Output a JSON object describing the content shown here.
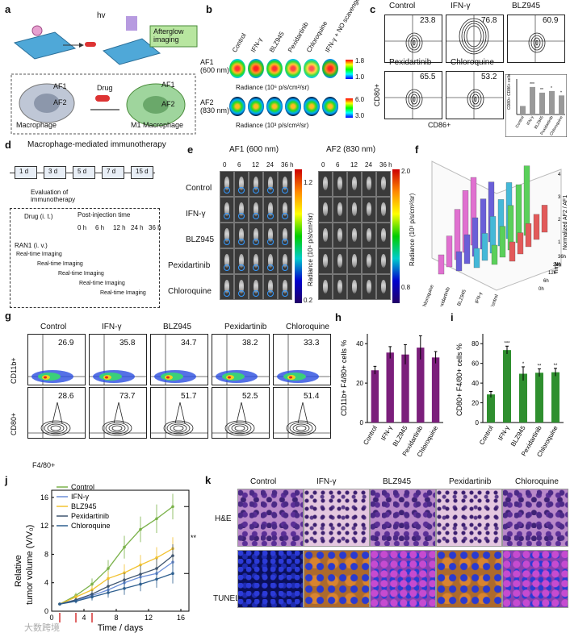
{
  "panels": {
    "a": "a",
    "b": "b",
    "c": "c",
    "d": "d",
    "e": "e",
    "f": "f",
    "g": "g",
    "h": "h",
    "i": "i",
    "j": "j",
    "k": "k"
  },
  "a": {
    "hv": "hv",
    "afterglow": "Afterglow\nimaging",
    "af1": "AF1",
    "af2": "AF2",
    "drug": "Drug",
    "macrophage": "Macrophage",
    "m1": "M1 Macrophage"
  },
  "b": {
    "columns": [
      "Control",
      "IFN-γ",
      "BLZ945",
      "Pexidartinib",
      "Chloroquine",
      "IFN-γ + NO scavenger"
    ],
    "row1": "AF1\n(600 nm)",
    "row2": "AF2\n(830 nm)",
    "cb1_max": "1.8",
    "cb1_min": "1.0",
    "cb2_max": "6.0",
    "cb2_min": "3.0",
    "rad1": "Radiance (10⁶ p/s/cm²/sr)",
    "rad2": "Radiance (10³ p/s/cm²/sr)"
  },
  "c": {
    "plots": [
      {
        "name": "Control",
        "val": "23.8"
      },
      {
        "name": "IFN-γ",
        "val": "76.8"
      },
      {
        "name": "BLZ945",
        "val": "60.9"
      },
      {
        "name": "Pexidartinib",
        "val": "65.5"
      },
      {
        "name": "Chloroquine",
        "val": "53.2"
      }
    ],
    "ylabel": "CD80+",
    "xlabel": "CD86+",
    "mini_ylabel": "CD80+ CD86+ cells %",
    "mini_cats": [
      "Control",
      "IFN-γ",
      "BLZ945",
      "Pexidartinib",
      "Chloroquine"
    ],
    "mini_vals": [
      23.8,
      76.8,
      60.9,
      65.5,
      53.2
    ],
    "mini_sig": [
      "",
      "***",
      "**",
      "*",
      "*"
    ]
  },
  "d": {
    "title": "Macrophage-mediated immunotherapy",
    "days": [
      "1 d",
      "3 d",
      "5 d",
      "7 d",
      "15 d"
    ],
    "eval": "Evaluation of\nimmunotherapy",
    "drug": "Drug (i. t.)",
    "ran1": "RAN1 (i. v.)",
    "post": "Post-injection time",
    "times": [
      "0 h",
      "6 h",
      "12 h",
      "24 h",
      "36 h"
    ],
    "rt": "Real-time Imaging"
  },
  "e": {
    "af1": "AF1 (600 nm)",
    "af2": "AF2 (830 nm)",
    "times": [
      "0",
      "6",
      "12",
      "24",
      "36 h"
    ],
    "rows": [
      "Control",
      "IFN-γ",
      "BLZ945",
      "Pexidartinib",
      "Chloroquine"
    ],
    "cb1_max": "1.2",
    "cb1_min": "0.2",
    "cb1_label": "Radiance (10⁴ p/s/cm²/sr)",
    "cb2_max": "2.0",
    "cb2_min": "0.8",
    "cb2_label": "Radiance (10³ p/s/cm²/sr)"
  },
  "f": {
    "zlabel": "Normalized AF2 / AF1",
    "zticks": [
      "0",
      "1",
      "2",
      "3",
      "4"
    ],
    "groups": [
      "Chloroquine",
      "Pexidartinib",
      "BLZ945",
      "IFN-γ",
      "Control"
    ],
    "times": [
      "0h",
      "6h",
      "12h",
      "24h",
      "36h"
    ],
    "tlabel": "Time"
  },
  "g": {
    "cols": [
      "Control",
      "IFN-γ",
      "BLZ945",
      "Pexidartinib",
      "Chloroquine"
    ],
    "row1": [
      "26.9",
      "35.8",
      "34.7",
      "38.2",
      "33.3"
    ],
    "row2": [
      "28.6",
      "73.7",
      "51.7",
      "52.5",
      "51.4"
    ],
    "y1": "CD11b+",
    "y2": "CD80+",
    "x": "F4/80+"
  },
  "h": {
    "ylabel": "CD11b+ F4/80+ cells %",
    "yticks": [
      "0",
      "20",
      "40"
    ]
  },
  "i": {
    "ylabel": "CD80+ F4/80+ cells %",
    "yticks": [
      "0",
      "20",
      "40",
      "60",
      "80"
    ]
  },
  "j": {
    "ylabel": "Relative\ntumor volume (V/V₀)",
    "xlabel": "Time / days",
    "sig": "**",
    "yticks": [
      "0",
      "4",
      "8",
      "12",
      "16"
    ],
    "xticks": [
      "0",
      "4",
      "8",
      "12",
      "16"
    ]
  },
  "k": {
    "cols": [
      "Control",
      "IFN-γ",
      "BLZ945",
      "Pexidartinib",
      "Chloroquine"
    ],
    "he": "H&E",
    "tunel": "TUNEL"
  },
  "watermark": "大数跨境",
  "chart_data": [
    {
      "type": "bar",
      "title": "",
      "xlabel": "",
      "ylabel": "CD11b+ F4/80+ cells %",
      "categories": [
        "Control",
        "IFN-γ",
        "BLZ945",
        "Pexidartinib",
        "Chloroquine"
      ],
      "values": [
        26.5,
        35.5,
        34.5,
        38,
        33
      ],
      "errors": [
        2,
        3,
        5,
        6,
        3
      ],
      "ylim": [
        0,
        45
      ],
      "color": "#7b1f7b"
    },
    {
      "type": "bar",
      "title": "",
      "xlabel": "",
      "ylabel": "CD80+ F4/80+ cells %",
      "categories": [
        "Control",
        "IFN-γ",
        "BLZ945",
        "Pexidartinib",
        "Chloroquine"
      ],
      "values": [
        28.5,
        73.5,
        49.5,
        50.5,
        51
      ],
      "errors": [
        3,
        4,
        7,
        4,
        4
      ],
      "sig": [
        "",
        "***",
        "*",
        "**",
        "**"
      ],
      "ylim": [
        0,
        90
      ],
      "color": "#2f8f2f"
    },
    {
      "type": "line",
      "title": "",
      "xlabel": "Time / days",
      "ylabel": "Relative tumor volume (V/V₀)",
      "x": [
        1,
        3,
        5,
        7,
        9,
        11,
        13,
        15
      ],
      "ylim": [
        0,
        17
      ],
      "xlim": [
        0,
        17
      ],
      "series": [
        {
          "name": "Control",
          "color": "#7bb24a",
          "values": [
            1,
            2.2,
            3.8,
            6,
            9,
            11.5,
            13,
            14.7
          ],
          "errors": [
            0.2,
            0.4,
            0.8,
            1.2,
            1.6,
            1.8,
            2,
            1.8
          ]
        },
        {
          "name": "IFN-γ",
          "color": "#6c8fd8",
          "values": [
            1,
            1.5,
            2.2,
            3,
            4,
            4.8,
            5.3,
            6.9
          ],
          "errors": [
            0.2,
            0.3,
            0.6,
            0.8,
            1,
            1.2,
            1.4,
            1.5
          ]
        },
        {
          "name": "BLZ945",
          "color": "#f2c230",
          "values": [
            1,
            2,
            3,
            4.6,
            5.4,
            6.5,
            7.5,
            8.8
          ],
          "errors": [
            0.2,
            0.4,
            0.6,
            1,
            1.2,
            1.4,
            1.5,
            1.6
          ]
        },
        {
          "name": "Pexidartinib",
          "color": "#3f5570",
          "values": [
            1,
            1.6,
            2.4,
            3.5,
            4.4,
            5.2,
            6,
            7.8
          ],
          "errors": [
            0.2,
            0.3,
            0.6,
            0.9,
            1,
            1.2,
            1.4,
            1.6
          ]
        },
        {
          "name": "Chloroquine",
          "color": "#2e5f8f",
          "values": [
            1,
            1.4,
            2,
            2.6,
            3.2,
            3.8,
            4.5,
            5.3
          ],
          "errors": [
            0.2,
            0.3,
            0.5,
            0.7,
            0.9,
            1,
            1.2,
            1.4
          ]
        }
      ]
    }
  ]
}
